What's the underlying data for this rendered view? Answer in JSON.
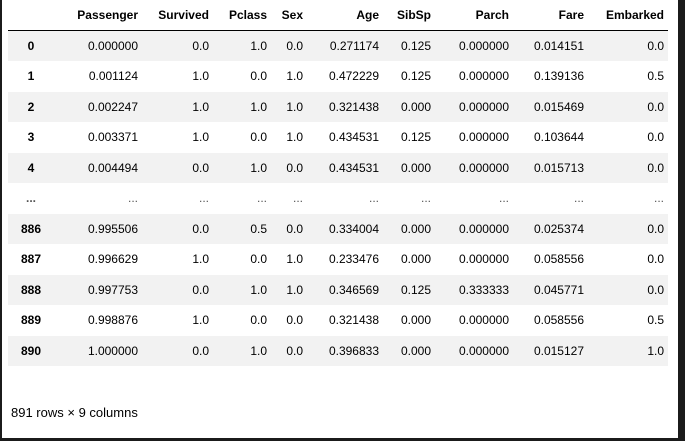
{
  "table": {
    "index_header": "",
    "columns": [
      "Passenger",
      "Survived",
      "Pclass",
      "Sex",
      "Age",
      "SibSp",
      "Parch",
      "Fare",
      "Embarked"
    ],
    "rows": [
      {
        "index": "0",
        "cells": [
          "0.000000",
          "0.0",
          "1.0",
          "0.0",
          "0.271174",
          "0.125",
          "0.000000",
          "0.014151",
          "0.0"
        ]
      },
      {
        "index": "1",
        "cells": [
          "0.001124",
          "1.0",
          "0.0",
          "1.0",
          "0.472229",
          "0.125",
          "0.000000",
          "0.139136",
          "0.5"
        ]
      },
      {
        "index": "2",
        "cells": [
          "0.002247",
          "1.0",
          "1.0",
          "1.0",
          "0.321438",
          "0.000",
          "0.000000",
          "0.015469",
          "0.0"
        ]
      },
      {
        "index": "3",
        "cells": [
          "0.003371",
          "1.0",
          "0.0",
          "1.0",
          "0.434531",
          "0.125",
          "0.000000",
          "0.103644",
          "0.0"
        ]
      },
      {
        "index": "4",
        "cells": [
          "0.004494",
          "0.0",
          "1.0",
          "0.0",
          "0.434531",
          "0.000",
          "0.000000",
          "0.015713",
          "0.0"
        ]
      },
      {
        "index": "...",
        "cells": [
          "...",
          "...",
          "...",
          "...",
          "...",
          "...",
          "...",
          "...",
          "..."
        ]
      },
      {
        "index": "886",
        "cells": [
          "0.995506",
          "0.0",
          "0.5",
          "0.0",
          "0.334004",
          "0.000",
          "0.000000",
          "0.025374",
          "0.0"
        ]
      },
      {
        "index": "887",
        "cells": [
          "0.996629",
          "1.0",
          "0.0",
          "1.0",
          "0.233476",
          "0.000",
          "0.000000",
          "0.058556",
          "0.0"
        ]
      },
      {
        "index": "888",
        "cells": [
          "0.997753",
          "0.0",
          "1.0",
          "1.0",
          "0.346569",
          "0.125",
          "0.333333",
          "0.045771",
          "0.0"
        ]
      },
      {
        "index": "889",
        "cells": [
          "0.998876",
          "1.0",
          "0.0",
          "0.0",
          "0.321438",
          "0.000",
          "0.000000",
          "0.058556",
          "0.5"
        ]
      },
      {
        "index": "890",
        "cells": [
          "1.000000",
          "0.0",
          "1.0",
          "0.0",
          "0.396833",
          "0.000",
          "0.000000",
          "0.015127",
          "1.0"
        ]
      }
    ]
  },
  "footer": {
    "shape_text": "891 rows × 9 columns"
  }
}
